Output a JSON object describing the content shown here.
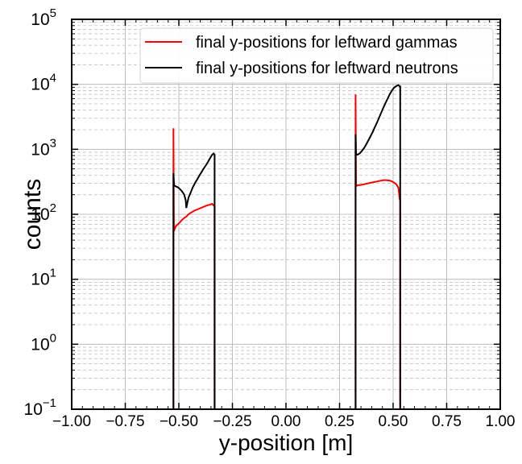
{
  "chart_data": {
    "type": "line",
    "title": "",
    "xlabel": "y-position [m]",
    "ylabel": "counts",
    "xlim": [
      -1.0,
      1.0
    ],
    "ylim": [
      0.1,
      100000
    ],
    "yscale": "log",
    "grid": true,
    "legend_position": "top-right",
    "x_ticks": [
      -1.0,
      -0.75,
      -0.5,
      -0.25,
      0.0,
      0.25,
      0.5,
      0.75,
      1.0
    ],
    "x_tick_labels": [
      "−1.00",
      "−0.75",
      "−0.50",
      "−0.25",
      "0.00",
      "0.25",
      "0.50",
      "0.75",
      "1.00"
    ],
    "y_ticks": [
      {
        "value": 0.1,
        "base": "10",
        "exp": "−1"
      },
      {
        "value": 1,
        "base": "10",
        "exp": "0"
      },
      {
        "value": 10,
        "base": "10",
        "exp": "1"
      },
      {
        "value": 100,
        "base": "10",
        "exp": "2"
      },
      {
        "value": 1000,
        "base": "10",
        "exp": "3"
      },
      {
        "value": 10000,
        "base": "10",
        "exp": "4"
      },
      {
        "value": 100000,
        "base": "10",
        "exp": "5"
      }
    ],
    "series": [
      {
        "name": "final y-positions for leftward gammas",
        "color": "#ff0000",
        "points": [
          [
            -0.525,
            0.1
          ],
          [
            -0.525,
            2100
          ],
          [
            -0.523,
            55
          ],
          [
            -0.515,
            65
          ],
          [
            -0.505,
            70
          ],
          [
            -0.495,
            75
          ],
          [
            -0.485,
            82
          ],
          [
            -0.475,
            88
          ],
          [
            -0.465,
            92
          ],
          [
            -0.455,
            100
          ],
          [
            -0.445,
            105
          ],
          [
            -0.435,
            110
          ],
          [
            -0.425,
            115
          ],
          [
            -0.415,
            118
          ],
          [
            -0.405,
            122
          ],
          [
            -0.395,
            126
          ],
          [
            -0.385,
            130
          ],
          [
            -0.375,
            134
          ],
          [
            -0.365,
            138
          ],
          [
            -0.355,
            140
          ],
          [
            -0.345,
            145
          ],
          [
            -0.336,
            135
          ],
          [
            -0.333,
            135
          ],
          [
            -0.333,
            0.1
          ],
          [
            0.325,
            0.1
          ],
          [
            0.325,
            7000
          ],
          [
            0.327,
            270
          ],
          [
            0.335,
            280
          ],
          [
            0.345,
            282
          ],
          [
            0.355,
            285
          ],
          [
            0.365,
            290
          ],
          [
            0.375,
            295
          ],
          [
            0.385,
            300
          ],
          [
            0.395,
            305
          ],
          [
            0.405,
            310
          ],
          [
            0.415,
            315
          ],
          [
            0.425,
            320
          ],
          [
            0.435,
            325
          ],
          [
            0.445,
            330
          ],
          [
            0.455,
            335
          ],
          [
            0.465,
            335
          ],
          [
            0.475,
            333
          ],
          [
            0.485,
            330
          ],
          [
            0.495,
            320
          ],
          [
            0.505,
            305
          ],
          [
            0.515,
            290
          ],
          [
            0.525,
            255
          ],
          [
            0.531,
            170
          ],
          [
            0.533,
            170
          ],
          [
            0.533,
            0.1
          ]
        ]
      },
      {
        "name": "final y-positions for leftward neutrons",
        "color": "#000000",
        "points": [
          [
            -0.525,
            0.1
          ],
          [
            -0.525,
            430
          ],
          [
            -0.522,
            280
          ],
          [
            -0.515,
            270
          ],
          [
            -0.505,
            260
          ],
          [
            -0.495,
            245
          ],
          [
            -0.485,
            225
          ],
          [
            -0.475,
            200
          ],
          [
            -0.468,
            165
          ],
          [
            -0.465,
            125
          ],
          [
            -0.46,
            150
          ],
          [
            -0.455,
            180
          ],
          [
            -0.445,
            215
          ],
          [
            -0.435,
            260
          ],
          [
            -0.425,
            300
          ],
          [
            -0.415,
            340
          ],
          [
            -0.405,
            390
          ],
          [
            -0.395,
            440
          ],
          [
            -0.385,
            500
          ],
          [
            -0.375,
            560
          ],
          [
            -0.365,
            630
          ],
          [
            -0.355,
            720
          ],
          [
            -0.345,
            820
          ],
          [
            -0.338,
            860
          ],
          [
            -0.333,
            830
          ],
          [
            -0.333,
            0.1
          ],
          [
            0.325,
            0.1
          ],
          [
            0.325,
            1700
          ],
          [
            0.327,
            820
          ],
          [
            0.335,
            830
          ],
          [
            0.345,
            870
          ],
          [
            0.355,
            950
          ],
          [
            0.365,
            1050
          ],
          [
            0.375,
            1200
          ],
          [
            0.385,
            1380
          ],
          [
            0.395,
            1600
          ],
          [
            0.405,
            1850
          ],
          [
            0.415,
            2200
          ],
          [
            0.425,
            2600
          ],
          [
            0.435,
            3100
          ],
          [
            0.445,
            3700
          ],
          [
            0.455,
            4400
          ],
          [
            0.465,
            5200
          ],
          [
            0.475,
            6100
          ],
          [
            0.485,
            7100
          ],
          [
            0.495,
            8100
          ],
          [
            0.505,
            8900
          ],
          [
            0.515,
            9400
          ],
          [
            0.525,
            9700
          ],
          [
            0.531,
            9300
          ],
          [
            0.533,
            9300
          ],
          [
            0.533,
            0.1
          ]
        ]
      }
    ]
  }
}
